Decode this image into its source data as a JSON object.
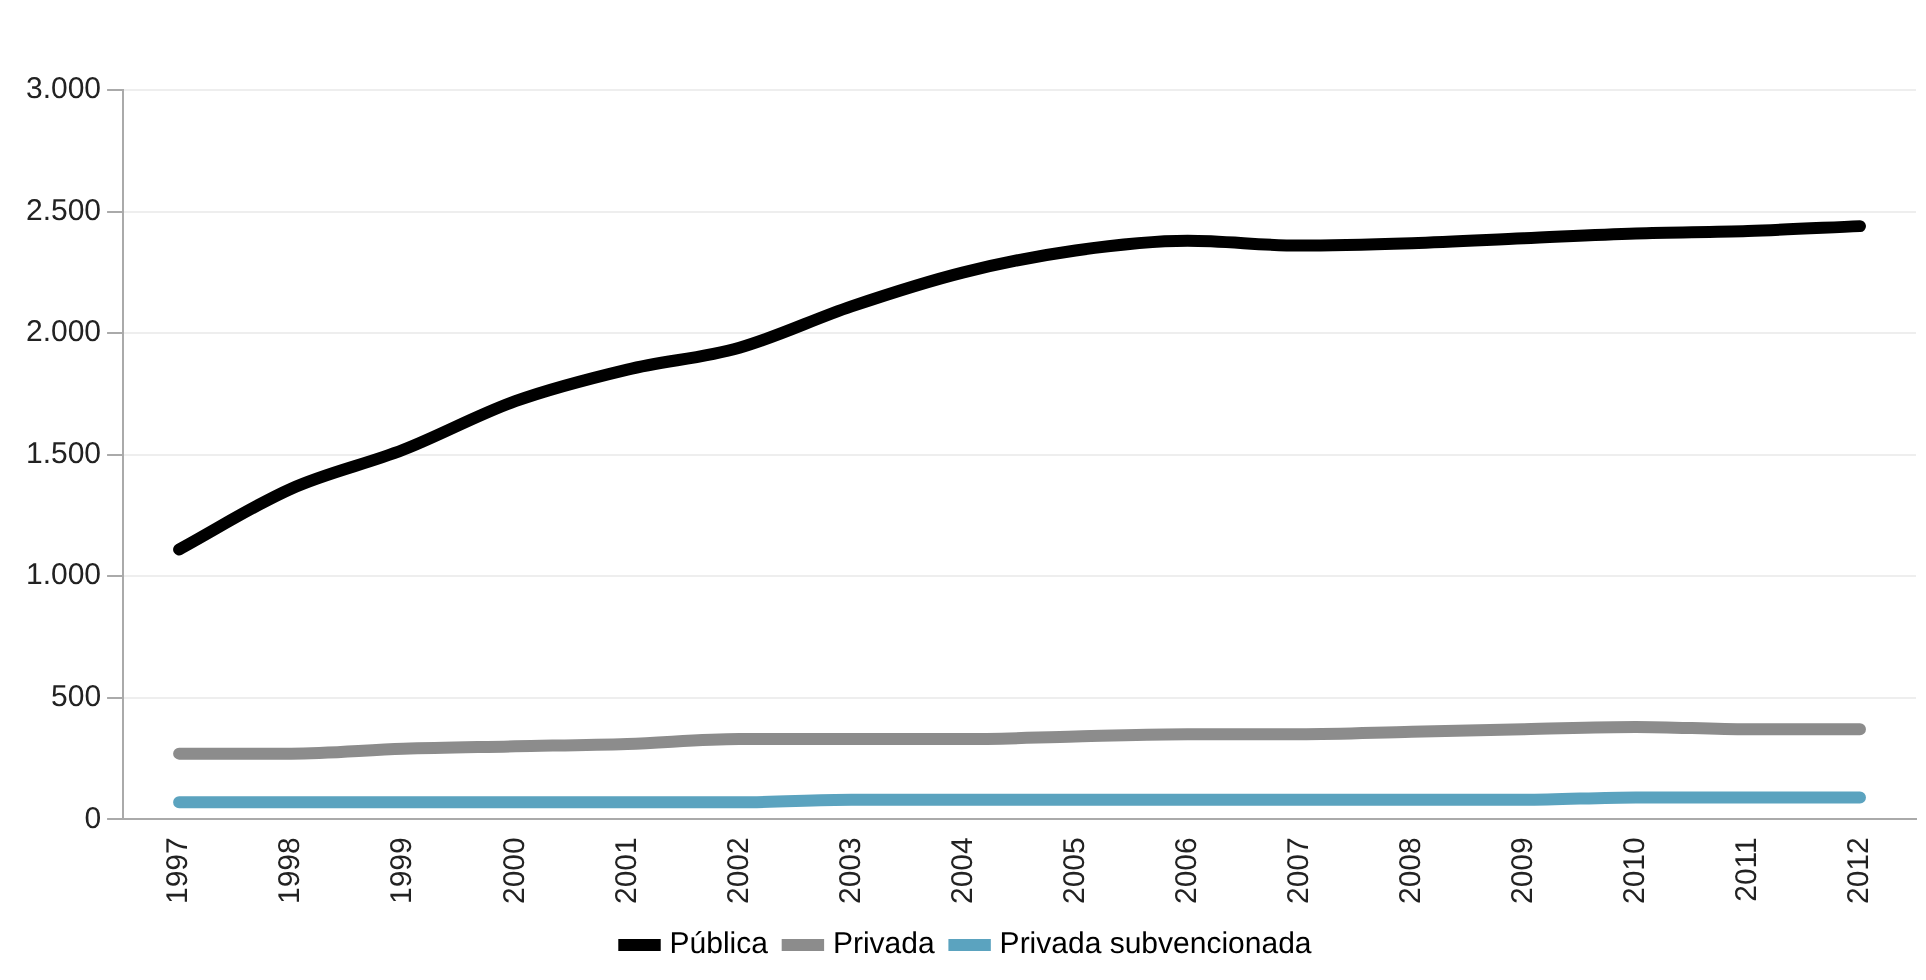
{
  "chart_data": {
    "type": "line",
    "categories": [
      "1997",
      "1998",
      "1999",
      "2000",
      "2001",
      "2002",
      "2003",
      "2004",
      "2005",
      "2006",
      "2007",
      "2008",
      "2009",
      "2010",
      "2011",
      "2012"
    ],
    "series": [
      {
        "name": "Pública",
        "color": "#000000",
        "values": [
          1110,
          1360,
          1520,
          1720,
          1850,
          1940,
          2110,
          2250,
          2340,
          2380,
          2360,
          2370,
          2390,
          2410,
          2420,
          2440
        ]
      },
      {
        "name": "Privada",
        "color": "#8c8c8c",
        "values": [
          270,
          270,
          290,
          300,
          310,
          330,
          330,
          330,
          340,
          350,
          350,
          360,
          370,
          380,
          370,
          370
        ]
      },
      {
        "name": "Privada subvencionada",
        "color": "#5ba3bf",
        "values": [
          70,
          70,
          70,
          70,
          70,
          70,
          80,
          80,
          80,
          80,
          80,
          80,
          80,
          90,
          90,
          90
        ]
      }
    ],
    "ylim": [
      0,
      3000
    ],
    "yticks": [
      0,
      {
        "value": 500,
        "label": "500"
      },
      {
        "value": 1000,
        "label": "1.000"
      },
      {
        "value": 1500,
        "label": "1.500"
      },
      {
        "value": 2000,
        "label": "2.000"
      },
      {
        "value": 2500,
        "label": "2.500"
      },
      {
        "value": 3000,
        "label": "3.000"
      }
    ],
    "grid": "y",
    "legend": "bottom",
    "marker": "none",
    "line_style": "solid"
  }
}
